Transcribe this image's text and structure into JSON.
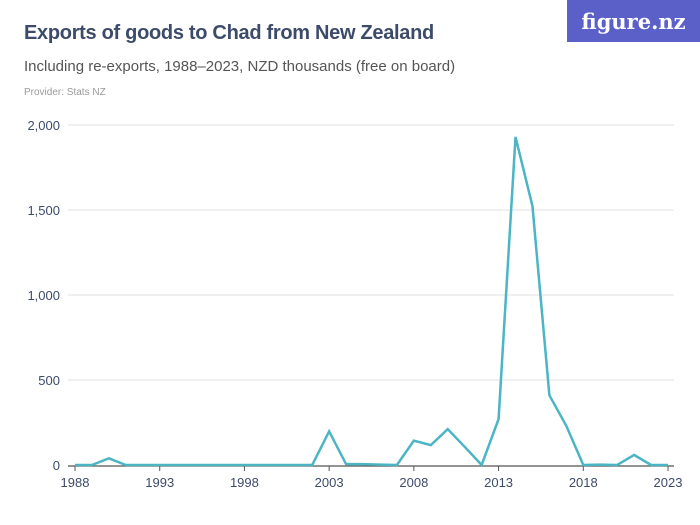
{
  "header": {
    "title": "Exports of goods to Chad from New Zealand",
    "subtitle": "Including re-exports, 1988–2023, NZD thousands (free on board)",
    "provider": "Provider: Stats NZ",
    "logo": "figure.nz"
  },
  "colors": {
    "line": "#4bb5c4",
    "grid": "#e2e2e2",
    "axis": "#555555",
    "logo_bg": "#5b60c9"
  },
  "chart_data": {
    "type": "line",
    "title": "Exports of goods to Chad from New Zealand",
    "xlabel": "",
    "ylabel": "",
    "ylim": [
      0,
      2000
    ],
    "xlim": [
      1988,
      2023
    ],
    "grid": true,
    "y_ticks": [
      {
        "v": 0,
        "label": "0"
      },
      {
        "v": 500,
        "label": "500"
      },
      {
        "v": 1000,
        "label": "1,000"
      },
      {
        "v": 1500,
        "label": "1,500"
      },
      {
        "v": 2000,
        "label": "2,000"
      }
    ],
    "x_ticks": [
      {
        "v": 1988,
        "label": "1988"
      },
      {
        "v": 1993,
        "label": "1993"
      },
      {
        "v": 1998,
        "label": "1998"
      },
      {
        "v": 2003,
        "label": "2003"
      },
      {
        "v": 2008,
        "label": "2008"
      },
      {
        "v": 2013,
        "label": "2013"
      },
      {
        "v": 2018,
        "label": "2018"
      },
      {
        "v": 2023,
        "label": "2023"
      }
    ],
    "x": [
      1988,
      1989,
      1990,
      1991,
      1992,
      1993,
      1994,
      1995,
      1996,
      1997,
      1998,
      1999,
      2000,
      2001,
      2002,
      2003,
      2004,
      2005,
      2006,
      2007,
      2008,
      2009,
      2010,
      2011,
      2012,
      2013,
      2014,
      2015,
      2016,
      2017,
      2018,
      2019,
      2020,
      2021,
      2022,
      2023
    ],
    "values": [
      0,
      0,
      39,
      0,
      0,
      0,
      0,
      0,
      0,
      0,
      0,
      0,
      0,
      0,
      0,
      198,
      5,
      5,
      2,
      0,
      143,
      117,
      211,
      107,
      0,
      270,
      1930,
      1523,
      410,
      230,
      0,
      2,
      0,
      59,
      0,
      0
    ]
  }
}
